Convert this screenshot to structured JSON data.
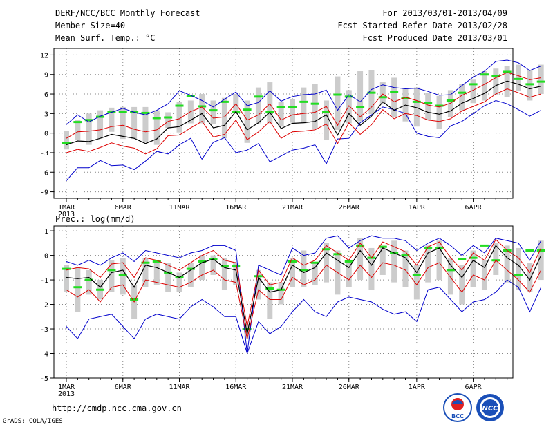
{
  "header": {
    "title": "DERF/NCC/BCC Monthly Forecast",
    "member_size": "Member Size=40",
    "variable": "Mean Surf. Temp.: °C",
    "period": "For 2013/03/01-2013/04/09",
    "refer_date": "Fcst Started Refer Date 2013/02/28",
    "produced_date": "Fcst Produced Date 2013/03/01"
  },
  "footer": {
    "url": "http://cmdp.ncc.cma.gov.cn",
    "grads": "GrADS: COLA/IGES",
    "logo_bcc": "BCC",
    "logo_ncc": "NCC"
  },
  "colors": {
    "max_min": "#0000cc",
    "std": "#dd0000",
    "mean": "#000000",
    "box": "#cccccc",
    "median": "#22dd22"
  },
  "chart_data": [
    {
      "type": "line",
      "title": "Mean Surf. Temp.: °C",
      "x_tick_labels": [
        "1MAR",
        "6MAR",
        "11MAR",
        "16MAR",
        "21MAR",
        "26MAR",
        "1APR",
        "6APR"
      ],
      "x_tick_days": [
        1,
        6,
        11,
        16,
        21,
        26,
        32,
        37
      ],
      "x_year_label": "2013",
      "ylim": [
        -10,
        13
      ],
      "yticks": [
        12,
        9,
        6,
        3,
        0,
        -3,
        -6,
        -9
      ],
      "days": 40,
      "series": [
        {
          "name": "mean",
          "values": [
            -1.8,
            -1.2,
            -1.3,
            -0.8,
            -0.2,
            -0.5,
            -0.8,
            -1.6,
            -0.9,
            0.8,
            1.0,
            2.0,
            3.0,
            0.8,
            1.2,
            3.3,
            0.5,
            1.6,
            3.2,
            0.7,
            1.5,
            1.6,
            1.8,
            2.8,
            -0.3,
            3.0,
            1.2,
            2.6,
            4.8,
            3.5,
            4.3,
            3.9,
            3.2,
            2.9,
            3.4,
            4.6,
            5.3,
            6.1,
            7.3,
            8.0,
            7.5,
            6.8,
            7.2
          ]
        },
        {
          "name": "std_upper",
          "values": [
            -0.8,
            0.2,
            0.3,
            0.5,
            1.0,
            1.2,
            0.6,
            0.2,
            0.5,
            1.8,
            2.2,
            3.3,
            4.0,
            2.3,
            2.5,
            4.5,
            2.0,
            2.8,
            4.5,
            2.0,
            2.8,
            3.0,
            3.2,
            4.1,
            1.2,
            4.2,
            2.5,
            4.0,
            6.0,
            4.8,
            5.5,
            5.0,
            4.3,
            4.0,
            4.6,
            5.8,
            6.6,
            7.5,
            8.5,
            9.3,
            8.8,
            8.2,
            8.5
          ]
        },
        {
          "name": "std_lower",
          "values": [
            -3.0,
            -2.5,
            -2.8,
            -2.2,
            -1.5,
            -2.0,
            -2.3,
            -3.2,
            -2.4,
            -0.4,
            -0.3,
            0.8,
            1.8,
            -0.6,
            -0.2,
            2.0,
            -1.0,
            0.2,
            1.8,
            -0.8,
            0.2,
            0.3,
            0.5,
            1.4,
            -1.6,
            1.6,
            -0.2,
            1.3,
            3.6,
            2.2,
            3.0,
            2.7,
            2.0,
            1.8,
            2.2,
            3.4,
            4.1,
            4.8,
            6.0,
            6.8,
            6.2,
            5.5,
            6.0
          ]
        },
        {
          "name": "max",
          "values": [
            1.3,
            2.8,
            1.7,
            2.6,
            3.2,
            3.8,
            3.2,
            2.8,
            3.5,
            4.5,
            6.5,
            5.8,
            5.0,
            4.0,
            5.2,
            6.3,
            4.2,
            4.7,
            6.5,
            4.9,
            5.6,
            5.9,
            6.0,
            6.6,
            3.5,
            5.9,
            4.8,
            6.7,
            7.4,
            7.0,
            6.8,
            6.9,
            6.4,
            5.8,
            5.9,
            7.3,
            8.6,
            9.5,
            11.0,
            11.2,
            10.8,
            9.6,
            10.3
          ]
        },
        {
          "name": "min",
          "values": [
            -7.3,
            -5.3,
            -5.3,
            -4.2,
            -5.0,
            -4.9,
            -5.6,
            -4.3,
            -2.8,
            -3.2,
            -1.8,
            -0.8,
            -4.0,
            -1.4,
            -0.7,
            -3.0,
            -2.6,
            -1.6,
            -4.4,
            -3.5,
            -2.6,
            -2.3,
            -1.8,
            -4.7,
            -0.9,
            -0.8,
            1.6,
            2.8,
            4.0,
            3.6,
            3.0,
            0.0,
            -0.5,
            -0.7,
            1.1,
            1.8,
            3.0,
            4.2,
            5.0,
            4.5,
            3.6,
            2.6,
            3.5
          ]
        },
        {
          "name": "box_upper",
          "values": [
            0.3,
            2.0,
            3.0,
            3.5,
            3.9,
            4.0,
            4.0,
            4.0,
            3.5,
            3.2,
            4.8,
            5.0,
            6.0,
            5.0,
            5.4,
            6.0,
            5.0,
            7.0,
            7.8,
            4.8,
            5.2,
            7.0,
            7.5,
            5.0,
            8.7,
            6.6,
            9.5,
            9.7,
            7.8,
            8.5,
            6.9,
            7.0,
            6.2,
            5.7,
            6.6,
            7.5,
            8.2,
            9.5,
            9.9,
            10.3,
            10.5,
            9.7,
            10.5
          ]
        },
        {
          "name": "box_lower",
          "values": [
            -2.5,
            -1.0,
            -1.8,
            -0.8,
            0.2,
            -0.9,
            -0.9,
            -1.4,
            -1.8,
            0.8,
            0.1,
            1.5,
            1.5,
            1.4,
            -0.8,
            3.0,
            -1.5,
            1.5,
            1.5,
            1.0,
            1.6,
            1.5,
            0.6,
            -1.0,
            0.5,
            1.5,
            1.8,
            2.9,
            4.5,
            2.5,
            1.8,
            1.0,
            2.0,
            0.6,
            2.5,
            3.5,
            4.6,
            5.0,
            5.8,
            5.5,
            6.5,
            5.0,
            6.0
          ]
        },
        {
          "name": "median",
          "values": [
            -1.5,
            1.7,
            2.0,
            2.5,
            3.2,
            3.2,
            3.2,
            3.1,
            2.3,
            2.4,
            4.2,
            5.7,
            4.1,
            3.5,
            4.8,
            3.2,
            3.6,
            5.6,
            3.3,
            4.0,
            4.0,
            4.8,
            4.5,
            3.2,
            5.9,
            5.6,
            4.0,
            6.2,
            5.5,
            6.3,
            5.4,
            4.8,
            4.6,
            4.2,
            5.0,
            6.2,
            7.5,
            9.0,
            8.8,
            9.4,
            8.3,
            7.5,
            7.9
          ]
        }
      ]
    },
    {
      "type": "line",
      "title": "Prec.: log(mm/d)",
      "x_tick_labels": [
        "1MAR",
        "6MAR",
        "11MAR",
        "16MAR",
        "21MAR",
        "26MAR",
        "1APR",
        "6APR"
      ],
      "x_tick_days": [
        1,
        6,
        11,
        16,
        21,
        26,
        32,
        37
      ],
      "x_year_label": "2013",
      "ylim": [
        -5,
        1.2
      ],
      "yticks": [
        1,
        0,
        -1,
        -2,
        -3,
        -4,
        -5
      ],
      "days": 40,
      "series": [
        {
          "name": "mean",
          "values": [
            -0.9,
            -0.95,
            -0.9,
            -1.3,
            -0.7,
            -0.6,
            -1.3,
            -0.4,
            -0.5,
            -0.7,
            -0.9,
            -0.6,
            -0.3,
            -0.15,
            -0.5,
            -0.6,
            -3.2,
            -0.9,
            -1.5,
            -1.4,
            -0.4,
            -0.7,
            -0.5,
            0.1,
            -0.2,
            -0.5,
            0.2,
            -0.4,
            0.3,
            0.1,
            -0.1,
            -0.7,
            0.1,
            0.3,
            -0.4,
            -0.9,
            -0.2,
            -0.5,
            0.4,
            -0.1,
            -0.4,
            -1.0,
            0.0
          ]
        },
        {
          "name": "std_upper",
          "values": [
            -0.6,
            -0.5,
            -0.55,
            -0.9,
            -0.35,
            -0.3,
            -0.9,
            -0.1,
            -0.2,
            -0.4,
            -0.6,
            -0.3,
            0.0,
            0.2,
            -0.2,
            -0.3,
            -2.9,
            -0.6,
            -1.2,
            -1.1,
            -0.1,
            -0.4,
            -0.2,
            0.4,
            0.1,
            -0.2,
            0.5,
            -0.1,
            0.55,
            0.35,
            0.15,
            -0.4,
            0.35,
            0.55,
            -0.1,
            -0.6,
            0.1,
            -0.2,
            0.65,
            0.2,
            -0.1,
            -0.7,
            0.3
          ]
        },
        {
          "name": "std_lower",
          "values": [
            -1.4,
            -1.7,
            -1.4,
            -1.9,
            -1.3,
            -1.2,
            -1.9,
            -1.0,
            -1.1,
            -1.2,
            -1.3,
            -1.1,
            -0.8,
            -0.6,
            -1.0,
            -1.1,
            -3.4,
            -1.4,
            -1.8,
            -1.8,
            -0.9,
            -1.2,
            -1.0,
            -0.4,
            -0.7,
            -1.0,
            -0.4,
            -0.9,
            -0.3,
            -0.4,
            -0.6,
            -1.2,
            -0.5,
            -0.3,
            -0.9,
            -1.5,
            -0.8,
            -1.0,
            -0.2,
            -0.6,
            -1.0,
            -1.5,
            -0.6
          ]
        },
        {
          "name": "max",
          "values": [
            -0.25,
            -0.4,
            -0.2,
            -0.4,
            -0.1,
            0.1,
            -0.25,
            0.2,
            0.1,
            0.0,
            -0.1,
            0.1,
            0.2,
            0.4,
            0.4,
            0.2,
            -4.0,
            -0.4,
            -0.6,
            -0.8,
            0.3,
            0.0,
            0.1,
            0.7,
            0.8,
            0.3,
            0.6,
            0.8,
            0.7,
            0.7,
            0.6,
            0.2,
            0.5,
            0.7,
            0.4,
            0.0,
            0.4,
            0.1,
            0.7,
            0.6,
            0.5,
            -0.2,
            0.6
          ]
        },
        {
          "name": "min",
          "values": [
            -2.9,
            -3.4,
            -2.6,
            -2.5,
            -2.4,
            -2.9,
            -3.4,
            -2.6,
            -2.4,
            -2.5,
            -2.6,
            -2.1,
            -1.8,
            -2.1,
            -2.5,
            -2.5,
            -4.0,
            -2.7,
            -3.2,
            -2.9,
            -2.3,
            -1.8,
            -2.3,
            -2.5,
            -1.9,
            -1.7,
            -1.8,
            -1.9,
            -2.2,
            -2.4,
            -2.3,
            -2.7,
            -1.4,
            -1.3,
            -1.8,
            -2.3,
            -1.9,
            -1.8,
            -1.5,
            -1.0,
            -1.3,
            -2.3,
            -1.3
          ]
        },
        {
          "name": "box_upper",
          "values": [
            -0.4,
            -0.5,
            -0.6,
            -1.0,
            -0.2,
            -0.1,
            -1.2,
            -0.1,
            -0.3,
            -0.3,
            -0.7,
            -0.3,
            0.0,
            0.0,
            -0.1,
            -0.3,
            -2.8,
            -0.6,
            -1.1,
            -1.1,
            -0.1,
            0.2,
            -0.3,
            0.5,
            0.2,
            -0.2,
            0.7,
            0.3,
            0.4,
            0.6,
            0.2,
            -0.4,
            0.4,
            0.6,
            -0.1,
            -0.4,
            0.2,
            -0.2,
            0.5,
            0.4,
            0.3,
            -0.3,
            0.6
          ]
        },
        {
          "name": "box_lower",
          "values": [
            -1.5,
            -2.3,
            -1.6,
            -1.8,
            -1.5,
            -1.6,
            -2.6,
            -1.3,
            -1.2,
            -1.5,
            -1.5,
            -1.3,
            -1.0,
            -0.8,
            -1.4,
            -1.2,
            -3.4,
            -1.8,
            -2.6,
            -2.0,
            -1.3,
            -1.3,
            -1.2,
            -1.1,
            -1.6,
            -1.3,
            -1.0,
            -1.4,
            -0.8,
            -1.1,
            -1.3,
            -1.8,
            -1.1,
            -1.0,
            -1.6,
            -2.0,
            -1.3,
            -1.4,
            -0.8,
            -1.1,
            -1.4,
            -1.5,
            -1.0
          ]
        },
        {
          "name": "median",
          "values": [
            -0.55,
            -1.3,
            -1.0,
            -1.4,
            -0.6,
            -0.8,
            -1.8,
            -0.3,
            -0.25,
            -0.7,
            -0.9,
            -0.55,
            -0.25,
            -0.15,
            -0.45,
            -0.45,
            -3.0,
            -0.85,
            -1.35,
            -1.4,
            -0.25,
            -0.6,
            -0.3,
            0.25,
            0.05,
            -0.25,
            0.4,
            -0.1,
            0.35,
            0.1,
            0.0,
            -0.8,
            0.3,
            0.3,
            -0.6,
            -0.15,
            -0.1,
            0.4,
            -0.2,
            0.2,
            -0.8,
            0.2,
            0.2
          ]
        }
      ]
    }
  ]
}
